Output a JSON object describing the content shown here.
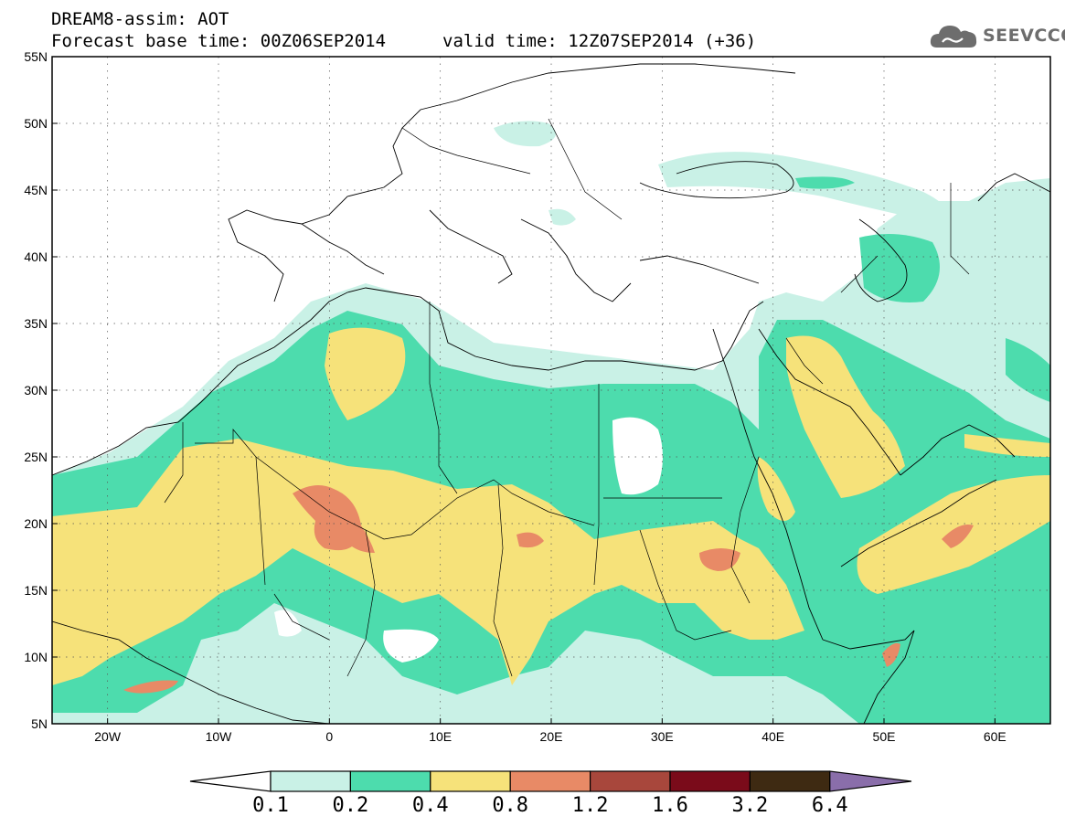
{
  "header": {
    "title_line1": "DREAM8-assim: AOT",
    "title_line2": "Forecast base time: 00Z06SEP2014",
    "valid_time": "valid time: 12Z07SEP2014 (+36)",
    "logo_text": "SEEVCCC",
    "logo_icon": "cloud-icon"
  },
  "map": {
    "type": "filled-contour-map",
    "variable": "AOT",
    "projection": "lat-lon",
    "lon_range": [
      -25,
      65
    ],
    "lat_range": [
      5,
      55
    ],
    "lat_labels": [
      "55N",
      "50N",
      "45N",
      "40N",
      "35N",
      "30N",
      "25N",
      "20N",
      "15N",
      "10N",
      "5N"
    ],
    "lon_labels": [
      "20W",
      "10W",
      "0",
      "10E",
      "20E",
      "30E",
      "40E",
      "50E",
      "60E"
    ],
    "grid": "dotted"
  },
  "colorbar": {
    "levels": [
      "0.1",
      "0.2",
      "0.4",
      "0.8",
      "1.2",
      "1.6",
      "3.2",
      "6.4"
    ],
    "colors": [
      "#ffffff",
      "#c9f1e6",
      "#4ddcad",
      "#f6e27a",
      "#e88a66",
      "#a8473c",
      "#7a0b1a",
      "#3e2a12",
      "#8a6eaa"
    ]
  }
}
